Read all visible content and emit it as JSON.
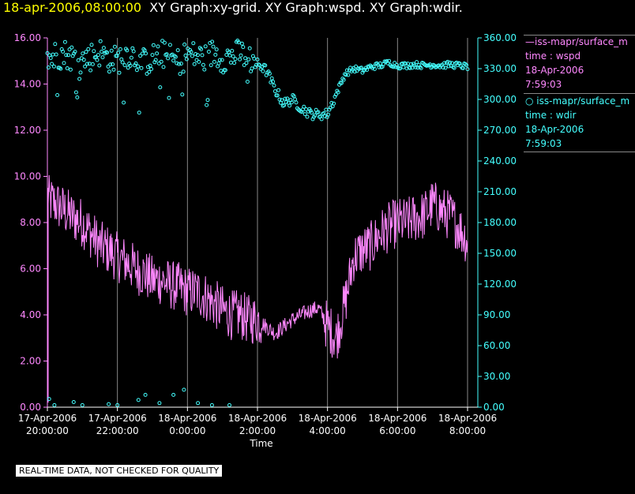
{
  "header": {
    "timestamp": "18-apr-2006,08:00:00",
    "graphs": "XY Graph:xy-grid.  XY Graph:wspd.  XY Graph:wdir."
  },
  "legend": {
    "wspd": {
      "line1": "iss-mapr/surface_m",
      "line2": "time : wspd",
      "line3": "18-Apr-2006",
      "line4": "7:59:03"
    },
    "wdir": {
      "line1": "iss-mapr/surface_m",
      "line2": "time : wdir",
      "line3": "18-Apr-2006",
      "line4": "7:59:03"
    }
  },
  "disclaimer": "REAL-TIME DATA, NOT CHECKED FOR QUALITY",
  "colors": {
    "wspd": "#ff88ff",
    "wdir": "#44ffff",
    "grid": "#888888",
    "axis_left": "#ff88ff",
    "axis_right": "#44ffff"
  },
  "chart_data": {
    "type": "line",
    "xlabel": "Time",
    "xlim_hours": [
      0,
      12
    ],
    "x_ticks": [
      {
        "h": 0,
        "d": "17-Apr-2006",
        "t": "20:00:00"
      },
      {
        "h": 2,
        "d": "17-Apr-2006",
        "t": "22:00:00"
      },
      {
        "h": 4,
        "d": "18-Apr-2006",
        "t": "0:00:00"
      },
      {
        "h": 6,
        "d": "18-Apr-2006",
        "t": "2:00:00"
      },
      {
        "h": 8,
        "d": "18-Apr-2006",
        "t": "4:00:00"
      },
      {
        "h": 10,
        "d": "18-Apr-2006",
        "t": "6:00:00"
      },
      {
        "h": 12,
        "d": "18-Apr-2006",
        "t": "8:00:00"
      }
    ],
    "y_left": {
      "name": "wspd",
      "lim": [
        0,
        16
      ],
      "ticks": [
        "0.00",
        "2.00",
        "4.00",
        "6.00",
        "8.00",
        "10.00",
        "12.00",
        "14.00",
        "16.00"
      ]
    },
    "y_right": {
      "name": "wdir",
      "lim": [
        0,
        360
      ],
      "ticks": [
        "0.00",
        "30.00",
        "60.00",
        "90.00",
        "120.00",
        "150.00",
        "180.00",
        "210.00",
        "240.00",
        "270.00",
        "300.00",
        "330.00",
        "360.00"
      ]
    },
    "series": [
      {
        "name": "wspd",
        "type": "line",
        "axis": "left",
        "x": [
          0,
          0.25,
          0.5,
          0.75,
          1,
          1.25,
          1.5,
          1.75,
          2,
          2.25,
          2.5,
          2.75,
          3,
          3.25,
          3.5,
          3.75,
          4,
          4.25,
          4.5,
          4.75,
          5,
          5.25,
          5.5,
          5.75,
          6,
          6.25,
          6.5,
          6.75,
          7,
          7.25,
          7.5,
          7.75,
          8,
          8.25,
          8.5,
          8.75,
          9,
          9.25,
          9.5,
          9.75,
          10,
          10.25,
          10.5,
          10.75,
          11,
          11.25,
          11.5,
          11.75,
          12
        ],
        "y": [
          9.0,
          8.8,
          8.5,
          8.2,
          8.0,
          7.5,
          7.0,
          6.8,
          6.5,
          6.3,
          6.0,
          5.8,
          5.5,
          5.5,
          5.3,
          5.2,
          5.0,
          5.0,
          4.8,
          4.5,
          4.2,
          4.0,
          4.0,
          3.8,
          3.8,
          3.5,
          3.2,
          3.5,
          3.8,
          4.0,
          4.2,
          4.3,
          3.5,
          3.0,
          4.5,
          6.5,
          6.8,
          7.0,
          7.5,
          7.8,
          8.0,
          8.0,
          8.2,
          8.3,
          8.8,
          8.5,
          8.3,
          7.8,
          7.2
        ]
      },
      {
        "name": "wdir",
        "type": "scatter",
        "axis": "right",
        "x": [
          0,
          0.25,
          0.5,
          0.75,
          1,
          1.25,
          1.5,
          1.75,
          2,
          2.25,
          2.5,
          2.75,
          3,
          3.25,
          3.5,
          3.75,
          4,
          4.25,
          4.5,
          4.75,
          5,
          5.25,
          5.5,
          5.75,
          6,
          6.25,
          6.5,
          6.75,
          7,
          7.25,
          7.5,
          7.75,
          8,
          8.25,
          8.5,
          8.75,
          9,
          9.25,
          9.5,
          9.75,
          10,
          10.25,
          10.5,
          10.75,
          11,
          11.25,
          11.5,
          11.75,
          12
        ],
        "y": [
          340,
          342,
          345,
          340,
          338,
          342,
          346,
          340,
          338,
          345,
          342,
          336,
          340,
          345,
          340,
          336,
          345,
          342,
          340,
          346,
          340,
          342,
          345,
          340,
          336,
          328,
          310,
          296,
          300,
          292,
          286,
          285,
          286,
          305,
          325,
          330,
          328,
          332,
          333,
          336,
          333,
          333,
          334,
          333,
          334,
          333,
          334,
          333,
          332
        ],
        "low_outliers": [
          {
            "x": 0.05,
            "y": 8
          },
          {
            "x": 0.2,
            "y": 2
          },
          {
            "x": 0.75,
            "y": 5
          },
          {
            "x": 1.0,
            "y": 2
          },
          {
            "x": 1.75,
            "y": 3
          },
          {
            "x": 2.0,
            "y": 2
          },
          {
            "x": 2.6,
            "y": 7
          },
          {
            "x": 2.8,
            "y": 12
          },
          {
            "x": 3.2,
            "y": 4
          },
          {
            "x": 3.6,
            "y": 12
          },
          {
            "x": 3.9,
            "y": 17
          },
          {
            "x": 4.3,
            "y": 4
          },
          {
            "x": 4.7,
            "y": 2
          },
          {
            "x": 5.2,
            "y": 2
          }
        ]
      }
    ]
  }
}
